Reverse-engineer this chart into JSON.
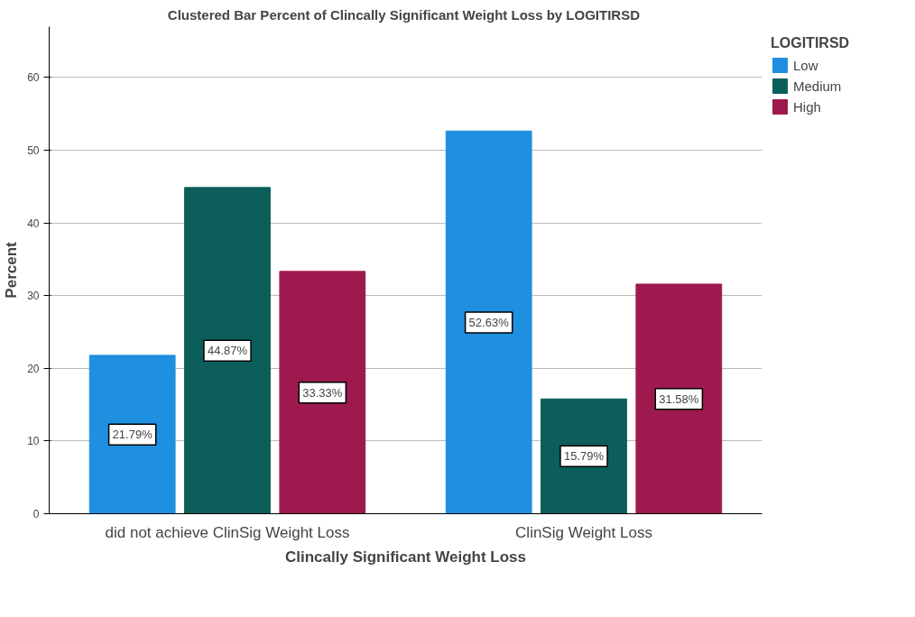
{
  "chart_data": {
    "type": "bar",
    "title": "Clustered Bar Percent of Clincally Significant Weight Loss  by LOGITIRSD",
    "xlabel": "Clincally Significant Weight Loss",
    "ylabel": "Percent",
    "legend_title": "LOGITIRSD",
    "categories": [
      "did not achieve ClinSig Weight Loss",
      "ClinSig Weight Loss"
    ],
    "series": [
      {
        "name": "Low",
        "color": "#1f8fe0",
        "values": [
          21.79,
          52.63
        ],
        "value_labels": [
          "21.79%",
          "52.63%"
        ]
      },
      {
        "name": "Medium",
        "color": "#0b5e5a",
        "values": [
          44.87,
          15.79
        ],
        "value_labels": [
          "44.87%",
          "15.79%"
        ]
      },
      {
        "name": "High",
        "color": "#9e1a4e",
        "values": [
          33.33,
          31.58
        ],
        "value_labels": [
          "33.33%",
          "31.58%"
        ]
      }
    ],
    "ylim": [
      0,
      67
    ],
    "yticks": [
      0,
      10,
      20,
      30,
      40,
      50,
      60
    ],
    "grid": "y",
    "legend": "top right"
  }
}
